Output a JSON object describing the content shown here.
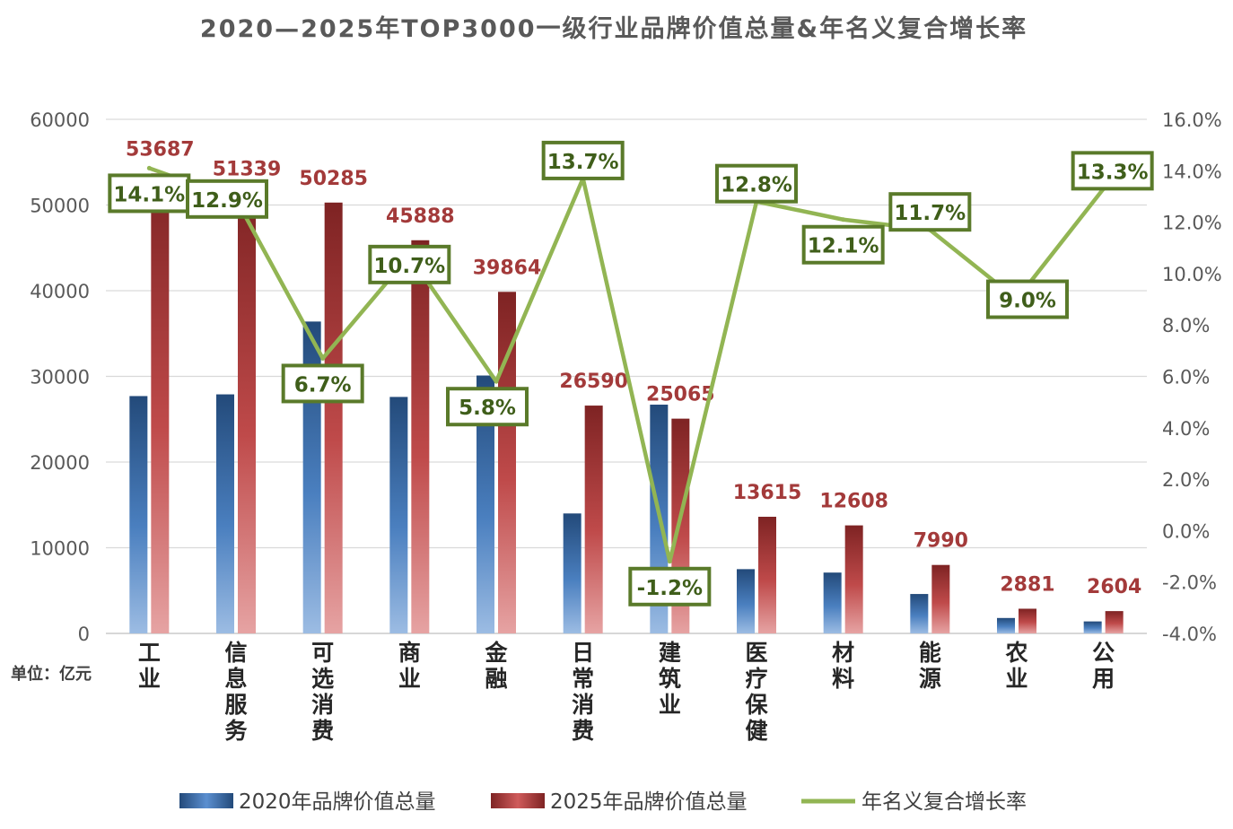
{
  "chart_data": {
    "type": "bar",
    "title": "2020—2025年TOP3000一级行业品牌价值总量&年名义复合增长率",
    "unit_label": "单位：亿元",
    "categories": [
      "工业",
      "信息服务",
      "可选消费",
      "商业",
      "金融",
      "日常消费",
      "建筑业",
      "医疗保健",
      "材料",
      "能源",
      "农业",
      "公用"
    ],
    "series": [
      {
        "name": "2020年品牌价值总量",
        "type": "bar",
        "axis": "left",
        "color": "#3f6ea8",
        "values": [
          27700,
          27900,
          36400,
          27600,
          30100,
          14000,
          26700,
          7500,
          7100,
          4600,
          1800,
          1400
        ]
      },
      {
        "name": "2025年品牌价值总量",
        "type": "bar",
        "axis": "left",
        "color": "#a33a3a",
        "values": [
          53687,
          51339,
          50285,
          45888,
          39864,
          26590,
          25065,
          13615,
          12608,
          7990,
          2881,
          2604
        ],
        "labels": [
          "53687",
          "51339",
          "50285",
          "45888",
          "39864",
          "26590",
          "25065",
          "13615",
          "12608",
          "7990",
          "2881",
          "2604"
        ]
      },
      {
        "name": "年名义复合增长率",
        "type": "line",
        "axis": "right",
        "color": "#92b553",
        "values": [
          14.1,
          12.9,
          6.7,
          10.7,
          5.8,
          13.7,
          -1.2,
          12.8,
          12.1,
          11.7,
          9.0,
          13.3
        ],
        "labels": [
          "14.1%",
          "12.9%",
          "6.7%",
          "10.7%",
          "5.8%",
          "13.7%",
          "-1.2%",
          "12.8%",
          "12.1%",
          "11.7%",
          "9.0%",
          "13.3%"
        ]
      }
    ],
    "y_left": {
      "range": [
        0,
        60000
      ],
      "ticks": [
        0,
        10000,
        20000,
        30000,
        40000,
        50000,
        60000
      ],
      "tick_labels": [
        "0",
        "10000",
        "20000",
        "30000",
        "40000",
        "50000",
        "60000"
      ]
    },
    "y_right": {
      "range": [
        -4,
        16
      ],
      "ticks": [
        -4,
        -2,
        0,
        2,
        4,
        6,
        8,
        10,
        12,
        14,
        16
      ],
      "tick_labels": [
        "-4.0%",
        "-2.0%",
        "0.0%",
        "2.0%",
        "4.0%",
        "6.0%",
        "8.0%",
        "10.0%",
        "12.0%",
        "14.0%",
        "16.0%"
      ]
    },
    "grid": true,
    "legend_position": "bottom"
  }
}
